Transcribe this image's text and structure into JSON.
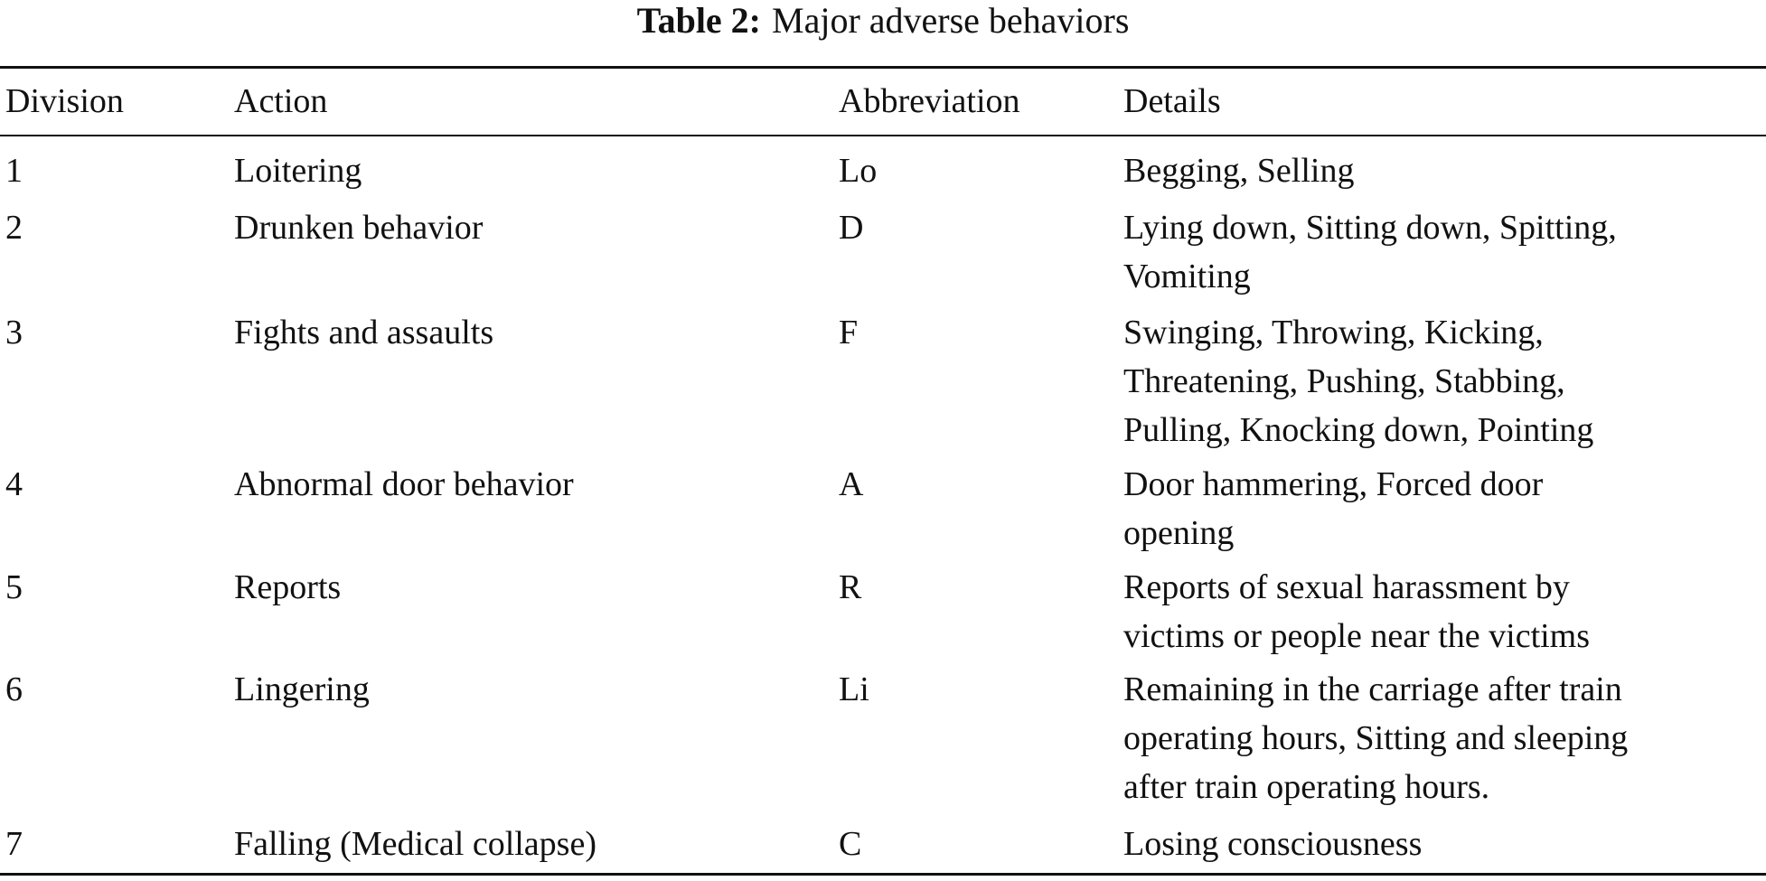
{
  "title": {
    "label": "Table 2:",
    "text": "Major adverse behaviors"
  },
  "table": {
    "header": [
      "Division",
      "Action",
      "Abbreviation",
      "Details"
    ],
    "rows": [
      [
        "1",
        "Loitering",
        "Lo",
        [
          "Begging, Selling"
        ]
      ],
      [
        "2",
        "Drunken behavior",
        "D",
        [
          "Lying down, Sitting down, Spitting,",
          "Vomiting"
        ]
      ],
      [
        "3",
        "Fights and assaults",
        "F",
        [
          "Swinging, Throwing, Kicking,",
          "Threatening, Pushing, Stabbing,",
          "Pulling, Knocking down, Pointing"
        ]
      ],
      [
        "4",
        "Abnormal door behavior",
        "A",
        [
          "Door hammering, Forced door",
          "opening"
        ]
      ],
      [
        "5",
        "Reports",
        "R",
        [
          "Reports of sexual harassment by",
          "victims or people near the victims"
        ]
      ],
      [
        "6",
        "Lingering",
        "Li",
        [
          "Remaining in the carriage after train",
          "operating hours, Sitting and sleeping",
          "after train operating hours."
        ]
      ],
      [
        "7",
        "Falling (Medical collapse)",
        "C",
        [
          "Losing consciousness"
        ]
      ]
    ]
  }
}
